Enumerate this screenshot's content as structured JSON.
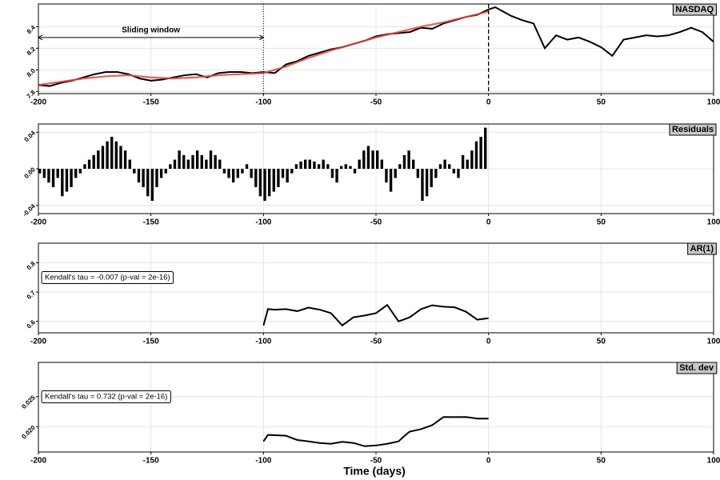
{
  "chart_data": [
    {
      "type": "line",
      "title": "NASDAQ",
      "xlim": [
        -200,
        100
      ],
      "xticks": [
        -200,
        -150,
        -100,
        -50,
        0,
        50,
        100
      ],
      "ylim": [
        7.78,
        8.61
      ],
      "yticks": [
        {
          "value": 7.8,
          "label": "7.8"
        },
        {
          "value": 8.0,
          "label": "8.0"
        },
        8.2,
        8.4
      ],
      "grid": true,
      "series": [
        {
          "color": "#000000",
          "x": [
            -200,
            -195,
            -190,
            -185,
            -180,
            -175,
            -170,
            -165,
            -160,
            -155,
            -150,
            -145,
            -140,
            -135,
            -130,
            -125,
            -120,
            -115,
            -110,
            -105,
            -100,
            -95,
            -90,
            -85,
            -80,
            -75,
            -70,
            -65,
            -60,
            -55,
            -50,
            -45,
            -40,
            -35,
            -30,
            -25,
            -20,
            -15,
            -10,
            -5,
            0,
            3,
            10,
            15,
            20,
            25,
            30,
            35,
            40,
            45,
            50,
            55,
            60,
            65,
            70,
            75,
            80,
            85,
            90,
            95,
            100
          ],
          "values": [
            7.86,
            7.85,
            7.88,
            7.9,
            7.93,
            7.96,
            7.98,
            7.98,
            7.96,
            7.92,
            7.9,
            7.91,
            7.93,
            7.95,
            7.96,
            7.93,
            7.97,
            7.98,
            7.98,
            7.97,
            7.98,
            7.97,
            8.05,
            8.08,
            8.13,
            8.16,
            8.19,
            8.21,
            8.24,
            8.27,
            8.31,
            8.33,
            8.34,
            8.35,
            8.39,
            8.38,
            8.43,
            8.46,
            8.49,
            8.51,
            8.56,
            8.58,
            8.5,
            8.46,
            8.43,
            8.2,
            8.32,
            8.28,
            8.3,
            8.26,
            8.21,
            8.13,
            8.28,
            8.3,
            8.32,
            8.31,
            8.32,
            8.35,
            8.39,
            8.35,
            8.26
          ]
        },
        {
          "color": "#e8423b",
          "x": [
            -200,
            -190,
            -180,
            -170,
            -160,
            -150,
            -140,
            -130,
            -120,
            -110,
            -100,
            -90,
            -80,
            -70,
            -60,
            -50,
            -40,
            -30,
            -20,
            -10,
            0
          ],
          "values": [
            7.86,
            7.89,
            7.92,
            7.94,
            7.95,
            7.93,
            7.92,
            7.93,
            7.95,
            7.96,
            7.97,
            8.03,
            8.11,
            8.18,
            8.24,
            8.3,
            8.35,
            8.4,
            8.44,
            8.49,
            8.54
          ]
        }
      ],
      "annotations": [
        {
          "text": "Sliding window",
          "x": [
            -200,
            -100
          ],
          "y": 8.3
        }
      ],
      "vlines": [
        {
          "x": -100,
          "style": "dotted"
        },
        {
          "x": 0,
          "style": "dashed"
        }
      ]
    },
    {
      "type": "bar",
      "title": "Residuals",
      "color": "#000000",
      "xlim": [
        -200,
        100
      ],
      "xticks": [
        -200,
        -150,
        -100,
        -50,
        0,
        50,
        100
      ],
      "ylim": [
        -0.049,
        0.049
      ],
      "yticks": [
        -0.04,
        {
          "value": 0,
          "label": "0.00"
        },
        0.04
      ],
      "grid": true,
      "x": [
        -200,
        -198,
        -196,
        -194,
        -192,
        -190,
        -188,
        -186,
        -184,
        -182,
        -180,
        -178,
        -176,
        -174,
        -172,
        -170,
        -168,
        -166,
        -164,
        -162,
        -160,
        -158,
        -156,
        -154,
        -152,
        -150,
        -148,
        -146,
        -144,
        -142,
        -140,
        -138,
        -136,
        -134,
        -132,
        -130,
        -128,
        -126,
        -124,
        -122,
        -120,
        -118,
        -116,
        -114,
        -112,
        -110,
        -108,
        -106,
        -104,
        -102,
        -100,
        -98,
        -96,
        -94,
        -92,
        -90,
        -88,
        -86,
        -84,
        -82,
        -80,
        -78,
        -76,
        -74,
        -72,
        -70,
        -68,
        -66,
        -64,
        -62,
        -60,
        -58,
        -56,
        -54,
        -52,
        -50,
        -48,
        -46,
        -44,
        -42,
        -40,
        -38,
        -36,
        -34,
        -32,
        -30,
        -28,
        -26,
        -24,
        -22,
        -20,
        -18,
        -16,
        -14,
        -12,
        -10,
        -8,
        -6,
        -4,
        -2
      ],
      "values": [
        -0.005,
        -0.01,
        -0.015,
        -0.02,
        -0.01,
        -0.03,
        -0.025,
        -0.02,
        -0.01,
        -0.005,
        0.005,
        0.01,
        0.015,
        0.02,
        0.025,
        0.03,
        0.035,
        0.03,
        0.025,
        0.02,
        0.01,
        -0.005,
        -0.015,
        -0.02,
        -0.03,
        -0.035,
        -0.02,
        -0.01,
        -0.005,
        0.005,
        0.01,
        0.02,
        0.015,
        0.01,
        0.015,
        0.02,
        0.015,
        0.01,
        0.02,
        0.015,
        0.01,
        -0.005,
        -0.01,
        -0.015,
        -0.01,
        -0.005,
        0.005,
        -0.01,
        -0.02,
        -0.03,
        -0.035,
        -0.03,
        -0.025,
        -0.02,
        -0.01,
        -0.015,
        -0.005,
        0.005,
        0.008,
        0.01,
        0.01,
        0.008,
        0.005,
        0.01,
        0.005,
        -0.01,
        -0.015,
        0.003,
        0.005,
        0.003,
        -0.005,
        0.01,
        0.02,
        0.025,
        0.02,
        0.02,
        0.01,
        -0.015,
        -0.025,
        -0.01,
        0.005,
        0.015,
        0.02,
        0.01,
        -0.01,
        -0.035,
        -0.03,
        -0.02,
        -0.01,
        0.005,
        0.01,
        0.005,
        -0.005,
        -0.01,
        0.015,
        0.01,
        0.02,
        0.03,
        0.035,
        0.045
      ]
    },
    {
      "type": "line",
      "title": "AR(1)",
      "xlim": [
        -200,
        100
      ],
      "xticks": [
        -200,
        -150,
        -100,
        -50,
        0,
        50,
        100
      ],
      "ylim": [
        0.561,
        0.867
      ],
      "yticks": [
        0.6,
        0.7,
        0.8
      ],
      "grid": true,
      "series": [
        {
          "color": "#000000",
          "x": [
            -100,
            -98,
            -95,
            -90,
            -85,
            -80,
            -75,
            -70,
            -65,
            -60,
            -55,
            -50,
            -45,
            -40,
            -35,
            -30,
            -25,
            -20,
            -15,
            -10,
            -5,
            0
          ],
          "values": [
            0.586,
            0.642,
            0.64,
            0.642,
            0.635,
            0.647,
            0.64,
            0.628,
            0.586,
            0.614,
            0.62,
            0.628,
            0.656,
            0.6,
            0.614,
            0.642,
            0.655,
            0.65,
            0.648,
            0.633,
            0.606,
            0.611
          ]
        }
      ],
      "annotations": [
        {
          "text": "Kendall's tau = -0.007 (p-val = 2e-16)"
        }
      ]
    },
    {
      "type": "line",
      "title": "Std. dev",
      "xlim": [
        -200,
        100
      ],
      "xticks": [
        -200,
        -150,
        -100,
        -50,
        0,
        50,
        100
      ],
      "ylim": [
        0.0158,
        0.0307
      ],
      "yticks": [
        {
          "value": 0.02,
          "label": "0.020"
        },
        0.025
      ],
      "grid": true,
      "xlabel": "Time (days)",
      "series": [
        {
          "color": "#000000",
          "x": [
            -100,
            -98,
            -95,
            -90,
            -85,
            -80,
            -75,
            -70,
            -65,
            -60,
            -55,
            -50,
            -45,
            -40,
            -37,
            -35,
            -30,
            -25,
            -20,
            -15,
            -10,
            -5,
            0
          ],
          "values": [
            0.01757,
            0.01865,
            0.0186,
            0.01851,
            0.0178,
            0.01757,
            0.0173,
            0.01716,
            0.0175,
            0.0173,
            0.01676,
            0.01689,
            0.01716,
            0.01757,
            0.0186,
            0.01919,
            0.0196,
            0.02027,
            0.02162,
            0.0216,
            0.02162,
            0.02135,
            0.02135
          ]
        }
      ],
      "annotations": [
        {
          "text": "Kendall's tau = 0.732 (p-val = 2e-16)"
        }
      ]
    }
  ]
}
